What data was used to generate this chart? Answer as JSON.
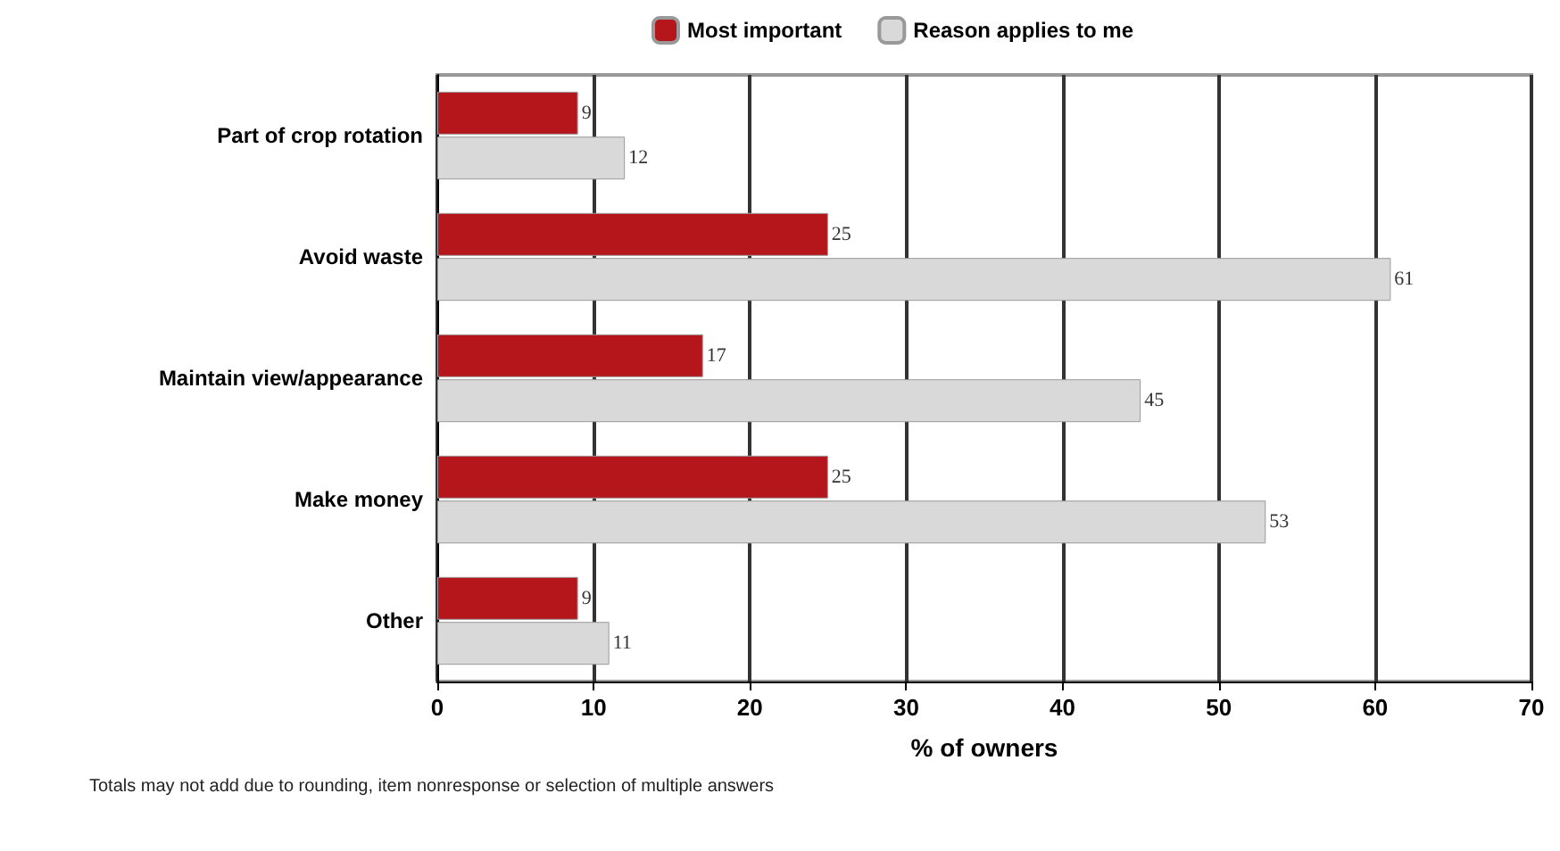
{
  "chart_data": {
    "type": "bar",
    "orientation": "horizontal",
    "xlabel": "% of owners",
    "categories": [
      "Part of crop rotation",
      "Avoid waste",
      "Maintain view/appearance",
      "Make money",
      "Other"
    ],
    "series": [
      {
        "name": "Most important",
        "color": "#b5161c",
        "values": [
          9,
          25,
          17,
          25,
          9
        ]
      },
      {
        "name": "Reason applies to me",
        "color": "#d9d9d9",
        "values": [
          12,
          61,
          45,
          53,
          11
        ]
      }
    ],
    "xlim": [
      0,
      70
    ],
    "xticks": [
      0,
      10,
      20,
      30,
      40,
      50,
      60,
      70
    ],
    "grid": "x",
    "legend": "top",
    "data_labels": true,
    "annotations": [
      "Totals may not add due to rounding, item nonresponse or selection of multiple answers"
    ]
  }
}
